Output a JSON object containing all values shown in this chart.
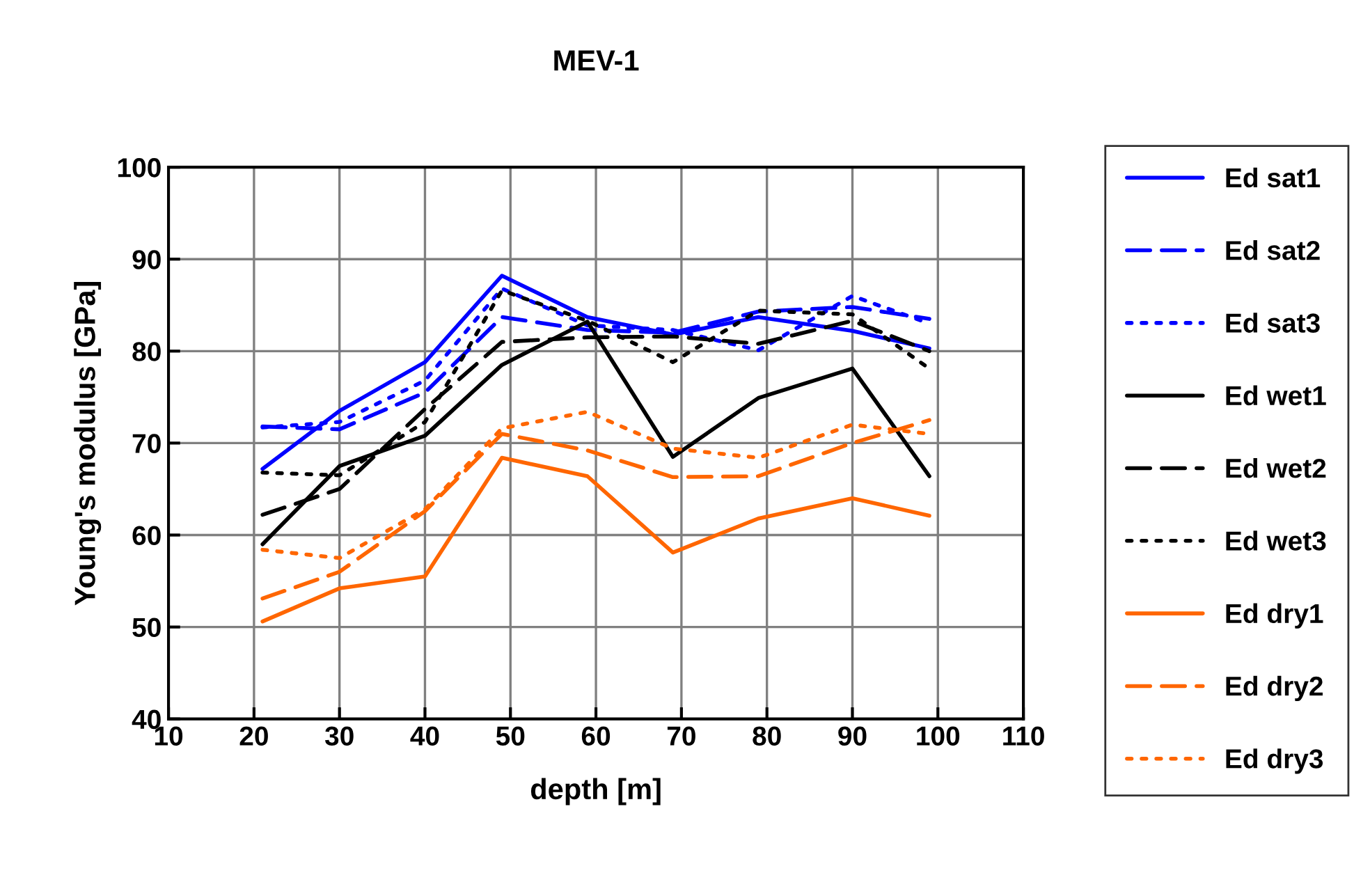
{
  "chart_data": {
    "type": "line",
    "title": "MEV-1",
    "xlabel": "depth [m]",
    "ylabel": "Young's modulus [GPa]",
    "x": [
      21,
      30,
      40,
      49,
      59,
      69,
      79,
      90,
      99
    ],
    "xlim": [
      10,
      110
    ],
    "xticks": [
      10,
      20,
      30,
      40,
      50,
      60,
      70,
      80,
      90,
      100,
      110
    ],
    "ylim": [
      40,
      100
    ],
    "yticks": [
      40,
      50,
      60,
      70,
      80,
      90,
      100
    ],
    "grid": true,
    "legend": "right",
    "marker": "none",
    "series": [
      {
        "name": "Ed sat1",
        "color": "#0000ff",
        "line_style": "solid",
        "values": [
          67.2,
          73.5,
          78.8,
          88.2,
          83.7,
          81.8,
          83.7,
          82.2,
          80.3
        ]
      },
      {
        "name": "Ed sat2",
        "color": "#0000ff",
        "line_style": "dashed",
        "values": [
          71.8,
          71.5,
          75.5,
          83.7,
          82.3,
          82.0,
          84.3,
          84.8,
          83.5
        ]
      },
      {
        "name": "Ed sat3",
        "color": "#0000ff",
        "line_style": "dotted",
        "values": [
          71.7,
          72.3,
          76.8,
          86.8,
          82.8,
          82.3,
          80.1,
          86.0,
          83.0
        ]
      },
      {
        "name": "Ed wet1",
        "color": "#000000",
        "line_style": "solid",
        "values": [
          59.0,
          67.5,
          70.8,
          78.5,
          83.2,
          68.5,
          74.9,
          78.1,
          66.4
        ]
      },
      {
        "name": "Ed wet2",
        "color": "#000000",
        "line_style": "dashed",
        "values": [
          62.2,
          65.0,
          73.7,
          81.0,
          81.5,
          81.6,
          80.8,
          83.3,
          80.0
        ]
      },
      {
        "name": "Ed wet3",
        "color": "#000000",
        "line_style": "dotted",
        "values": [
          66.8,
          66.5,
          72.3,
          86.6,
          83.3,
          78.8,
          84.4,
          84.0,
          78.1
        ]
      },
      {
        "name": "Ed dry1",
        "color": "#ff6600",
        "line_style": "solid",
        "values": [
          50.6,
          54.2,
          55.5,
          68.4,
          66.4,
          58.1,
          61.8,
          64.0,
          62.1
        ]
      },
      {
        "name": "Ed dry2",
        "color": "#ff6600",
        "line_style": "dashed",
        "values": [
          53.1,
          56.0,
          62.6,
          71.0,
          69.2,
          66.3,
          66.4,
          70.0,
          72.5
        ]
      },
      {
        "name": "Ed dry3",
        "color": "#ff6600",
        "line_style": "dotted",
        "values": [
          58.4,
          57.5,
          62.8,
          71.6,
          73.4,
          69.4,
          68.4,
          72.0,
          71.0
        ]
      }
    ]
  }
}
